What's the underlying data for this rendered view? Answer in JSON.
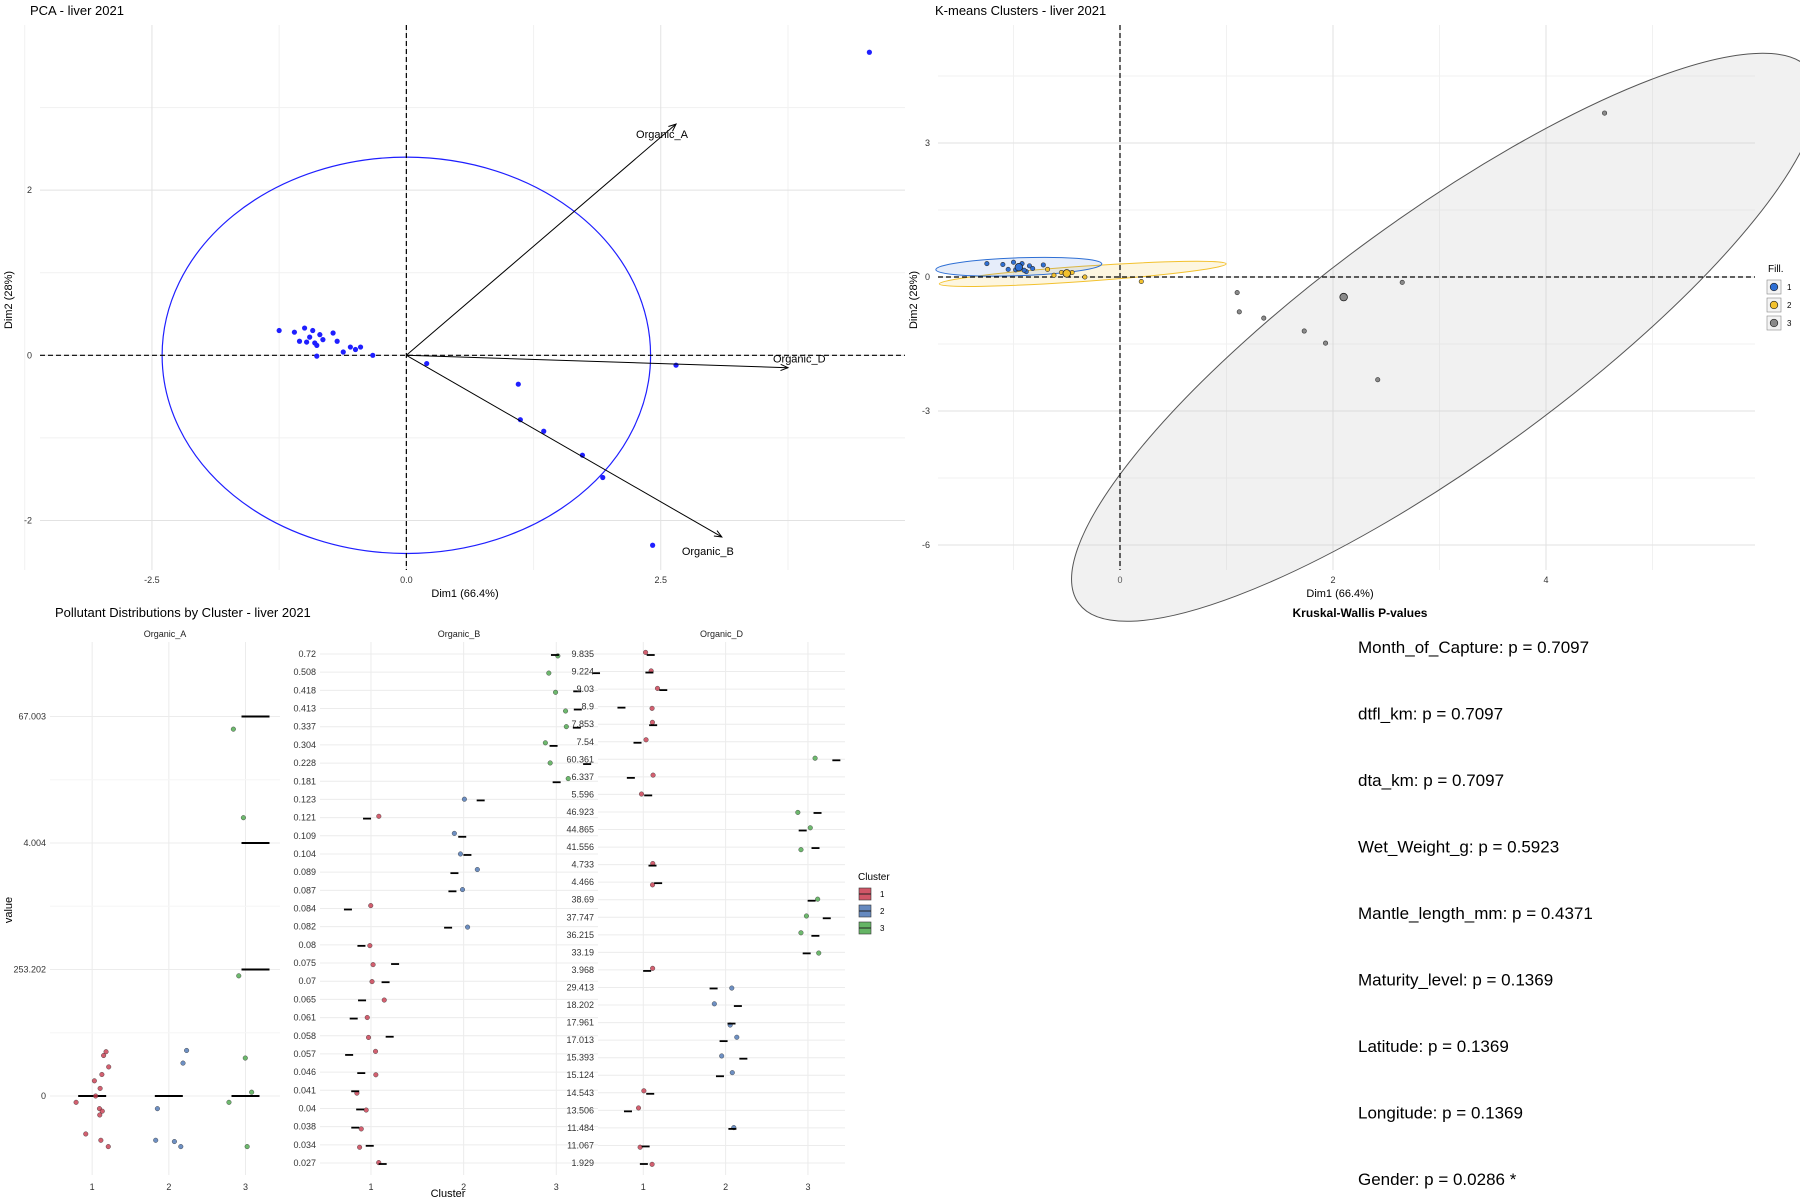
{
  "chart_data": [
    {
      "type": "scatter",
      "title": "PCA - liver 2021",
      "xlabel": "Dim1 (66.4%)",
      "ylabel": "Dim2 (28%)",
      "xlim": [
        -3.6,
        4.9
      ],
      "ylim": [
        -2.6,
        4.0
      ],
      "xticks": [
        "-2.5",
        "0.0",
        "2.5"
      ],
      "xtick_values": [
        -2.5,
        0,
        2.5
      ],
      "yticks": [
        "2",
        "0",
        "-2"
      ],
      "ytick_values": [
        2,
        0,
        -2
      ],
      "grid": true,
      "point_color": "#1f1fff",
      "circle_color": "#1f1fff",
      "circle_radius": 2.4,
      "points": [
        {
          "x": -1.25,
          "y": 0.3
        },
        {
          "x": -1.1,
          "y": 0.28
        },
        {
          "x": -1.05,
          "y": 0.17
        },
        {
          "x": -0.98,
          "y": 0.16
        },
        {
          "x": -1.0,
          "y": 0.33
        },
        {
          "x": -0.92,
          "y": 0.3
        },
        {
          "x": -0.95,
          "y": 0.22
        },
        {
          "x": -0.88,
          "y": 0.12
        },
        {
          "x": -0.85,
          "y": 0.25
        },
        {
          "x": -0.82,
          "y": 0.19
        },
        {
          "x": -0.9,
          "y": 0.15
        },
        {
          "x": -0.72,
          "y": 0.27
        },
        {
          "x": -0.68,
          "y": 0.17
        },
        {
          "x": -0.62,
          "y": 0.04
        },
        {
          "x": -0.55,
          "y": 0.1
        },
        {
          "x": -0.5,
          "y": 0.07
        },
        {
          "x": -0.45,
          "y": 0.1
        },
        {
          "x": -0.88,
          "y": -0.01
        },
        {
          "x": -0.33,
          "y": 0.0
        },
        {
          "x": 0.2,
          "y": -0.1
        },
        {
          "x": 1.1,
          "y": -0.35
        },
        {
          "x": 1.12,
          "y": -0.78
        },
        {
          "x": 1.35,
          "y": -0.92
        },
        {
          "x": 1.73,
          "y": -1.21
        },
        {
          "x": 1.93,
          "y": -1.48
        },
        {
          "x": 2.65,
          "y": -0.12
        },
        {
          "x": 2.42,
          "y": -2.3
        },
        {
          "x": 4.55,
          "y": 3.67
        }
      ],
      "arrows": [
        {
          "label": "Organic_A",
          "x": 2.65,
          "y": 2.8
        },
        {
          "label": "Organic_D",
          "x": 3.75,
          "y": -0.15
        },
        {
          "label": "Organic_B",
          "x": 3.1,
          "y": -2.2
        }
      ]
    },
    {
      "type": "scatter",
      "title": "K-means Clusters - liver 2021",
      "xlabel": "Dim1 (66.4%)",
      "ylabel": "Dim2 (28%)",
      "xlim": [
        -4.2,
        10.6
      ],
      "ylim": [
        -6.0,
        5.0
      ],
      "xticks": [
        "0",
        "2",
        "4"
      ],
      "xtick_values": [
        0,
        2,
        4
      ],
      "yticks": [
        "3",
        "0",
        "-3",
        "-6"
      ],
      "ytick_values": [
        3,
        0,
        -3,
        -6
      ],
      "grid": true,
      "legend": {
        "title": "Fill.",
        "position": "right",
        "items": [
          {
            "label": "1",
            "color": "#2e6fd4"
          },
          {
            "label": "2",
            "color": "#f2c12e"
          },
          {
            "label": "3",
            "color": "#8a8a8a"
          }
        ]
      },
      "clusters": [
        {
          "name": "1",
          "color": "#2e6fd4",
          "ellipse": {
            "cx": -0.95,
            "cy": 0.23,
            "rx": 0.78,
            "ry": 0.2,
            "angle": -2
          },
          "points": [
            {
              "x": -1.25,
              "y": 0.3
            },
            {
              "x": -1.1,
              "y": 0.28
            },
            {
              "x": -1.05,
              "y": 0.17
            },
            {
              "x": -0.98,
              "y": 0.16
            },
            {
              "x": -1.0,
              "y": 0.33
            },
            {
              "x": -0.92,
              "y": 0.3
            },
            {
              "x": -0.95,
              "y": 0.22
            },
            {
              "x": -0.88,
              "y": 0.12
            },
            {
              "x": -0.85,
              "y": 0.25
            },
            {
              "x": -0.82,
              "y": 0.19
            },
            {
              "x": -0.9,
              "y": 0.15
            },
            {
              "x": -0.72,
              "y": 0.27
            }
          ],
          "centroid": {
            "x": -0.95,
            "y": 0.22
          }
        },
        {
          "name": "2",
          "color": "#f2c12e",
          "ellipse": {
            "cx": -0.35,
            "cy": 0.07,
            "rx": 1.35,
            "ry": 0.17,
            "angle": -4
          },
          "points": [
            {
              "x": -0.68,
              "y": 0.17
            },
            {
              "x": -0.62,
              "y": 0.04
            },
            {
              "x": -0.55,
              "y": 0.1
            },
            {
              "x": -0.5,
              "y": 0.07
            },
            {
              "x": -0.45,
              "y": 0.1
            },
            {
              "x": -0.33,
              "y": 0.0
            },
            {
              "x": 0.2,
              "y": -0.1
            }
          ],
          "centroid": {
            "x": -0.5,
            "y": 0.08
          }
        },
        {
          "name": "3",
          "color": "#8a8a8a",
          "ellipse": {
            "cx": 3.05,
            "cy": -1.35,
            "rx": 4.25,
            "ry": 2.75,
            "angle": -36
          },
          "points": [
            {
              "x": 1.1,
              "y": -0.35
            },
            {
              "x": 1.12,
              "y": -0.78
            },
            {
              "x": 1.35,
              "y": -0.92
            },
            {
              "x": 1.73,
              "y": -1.21
            },
            {
              "x": 1.93,
              "y": -1.48
            },
            {
              "x": 2.65,
              "y": -0.12
            },
            {
              "x": 2.42,
              "y": -2.3
            },
            {
              "x": 4.55,
              "y": 3.67
            }
          ],
          "centroid": {
            "x": 2.1,
            "y": -0.45
          }
        }
      ]
    },
    {
      "type": "scatter",
      "title": "Pollutant Distributions by Cluster - liver 2021",
      "xlabel": "Cluster",
      "ylabel": "value",
      "legend": {
        "title": "Cluster",
        "position": "right",
        "items": [
          {
            "label": "1",
            "color": "#c8384c"
          },
          {
            "label": "2",
            "color": "#4a74b4"
          },
          {
            "label": "3",
            "color": "#4aa84a"
          }
        ]
      },
      "x_categories": [
        "1",
        "2",
        "3"
      ],
      "facets": [
        {
          "name": "Organic_A",
          "y_levels": [
            "0",
            "253.202",
            "4.004",
            "67.003"
          ],
          "points": [
            {
              "c": 1,
              "y": 0.35
            },
            {
              "c": 1,
              "y": 0.32
            },
            {
              "c": 1,
              "y": 0.23
            },
            {
              "c": 1,
              "y": 0.17
            },
            {
              "c": 1,
              "y": 0.12
            },
            {
              "c": 1,
              "y": 0.06
            },
            {
              "c": 1,
              "y": 0.0
            },
            {
              "c": 1,
              "y": -0.05
            },
            {
              "c": 1,
              "y": -0.1
            },
            {
              "c": 1,
              "y": -0.12
            },
            {
              "c": 1,
              "y": -0.15
            },
            {
              "c": 1,
              "y": -0.3
            },
            {
              "c": 1,
              "y": -0.35
            },
            {
              "c": 1,
              "y": -0.4
            },
            {
              "c": 2,
              "y": 0.36
            },
            {
              "c": 2,
              "y": 0.26
            },
            {
              "c": 2,
              "y": -0.1
            },
            {
              "c": 2,
              "y": -0.35
            },
            {
              "c": 2,
              "y": -0.36
            },
            {
              "c": 2,
              "y": -0.4
            },
            {
              "c": 3,
              "y": 2.9
            },
            {
              "c": 3,
              "y": 2.2
            },
            {
              "c": 3,
              "y": 0.95
            },
            {
              "c": 3,
              "y": 0.3
            },
            {
              "c": 3,
              "y": 0.03
            },
            {
              "c": 3,
              "y": -0.05
            },
            {
              "c": 3,
              "y": -0.4
            }
          ],
          "medians": [
            {
              "c": 1,
              "y": 0.0
            },
            {
              "c": 2,
              "y": 0.0
            },
            {
              "c": 3,
              "y": 0.0
            },
            {
              "c": 3,
              "y": 1.0
            },
            {
              "c": 3,
              "y": 2.0
            },
            {
              "c": 3,
              "y": 3.0
            }
          ]
        },
        {
          "name": "Organic_B",
          "y_levels": [
            "0.027",
            "0.034",
            "0.038",
            "0.04",
            "0.041",
            "0.046",
            "0.057",
            "0.058",
            "0.061",
            "0.065",
            "0.07",
            "0.075",
            "0.08",
            "0.082",
            "0.084",
            "0.087",
            "0.089",
            "0.104",
            "0.109",
            "0.121",
            "0.123",
            "0.181",
            "0.228",
            "0.304",
            "0.337",
            "0.413",
            "0.418",
            "0.508",
            "0.72"
          ]
        },
        {
          "name": "Organic_D",
          "y_levels": [
            "1.929",
            "11.067",
            "11.484",
            "13.506",
            "14.543",
            "15.124",
            "15.393",
            "17.013",
            "17.961",
            "18.202",
            "29.413",
            "3.968",
            "33.19",
            "36.215",
            "37.747",
            "38.69",
            "4.466",
            "4.733",
            "41.556",
            "44.865",
            "46.923",
            "5.596",
            "6.337",
            "60.361",
            "7.54",
            "7.853",
            "8.9",
            "9.03",
            "9.224",
            "9.835"
          ]
        }
      ]
    },
    {
      "type": "table",
      "title": "Kruskal-Wallis P-values",
      "rows": [
        "Month_of_Capture: p = 0.7097",
        "dtfl_km: p = 0.7097",
        "dta_km: p = 0.7097",
        "Wet_Weight_g: p = 0.5923",
        "Mantle_length_mm: p = 0.4371",
        "Maturity_level: p = 0.1369",
        "Latitude: p = 0.1369",
        "Longitude: p = 0.1369",
        "Gender: p = 0.0286 *"
      ]
    }
  ]
}
